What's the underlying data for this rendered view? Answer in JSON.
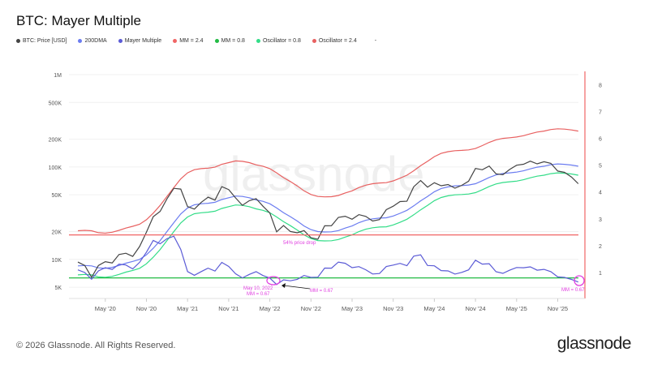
{
  "title": "BTC: Mayer Multiple",
  "footer": "© 2026 Glassnode. All Rights Reserved.",
  "logo": "glassnode",
  "watermark": "glassnode",
  "legend": [
    {
      "label": "BTC: Price [USD]",
      "color": "#444444"
    },
    {
      "label": "200DMA",
      "color": "#6b7cf0"
    },
    {
      "label": "Mayer Multiple",
      "color": "#5b5bd6"
    },
    {
      "label": "MM = 2.4",
      "color": "#f06565"
    },
    {
      "label": "MM = 0.8",
      "color": "#22bb44"
    },
    {
      "label": "Oscillator = 0.8",
      "color": "#33dd88"
    },
    {
      "label": "Oscillator = 2.4",
      "color": "#e86060"
    },
    {
      "label": "-",
      "color": "#ffffff"
    }
  ],
  "chart_data": {
    "type": "line",
    "title": "BTC: Mayer Multiple",
    "x_start": "2020-01",
    "x_step": "month",
    "x_ticks": [
      "May '20",
      "Nov '20",
      "May '21",
      "Nov '21",
      "May '22",
      "Nov '22",
      "May '23",
      "Nov '23",
      "May '24",
      "Nov '24",
      "May '25",
      "Nov '25"
    ],
    "y_left": {
      "scale": "log",
      "range": [
        4000,
        1000000
      ],
      "ticks": [
        "5K",
        "10K",
        "20K",
        "50K",
        "100K",
        "200K",
        "500K",
        "1M"
      ]
    },
    "y_right": {
      "scale": "linear",
      "range": [
        0.5,
        8.3
      ],
      "ticks": [
        "1",
        "2",
        "3",
        "4",
        "5",
        "6",
        "7",
        "8"
      ]
    },
    "grid": true,
    "legend_placement": "top-left",
    "series": [
      {
        "name": "BTC: Price [USD]",
        "axis": "left",
        "color": "#444444",
        "values": [
          9350,
          8600,
          6400,
          8600,
          9450,
          9140,
          11300,
          11650,
          10780,
          13800,
          19700,
          29000,
          33100,
          45200,
          58800,
          57700,
          37300,
          35000,
          41500,
          47100,
          43800,
          61300,
          57000,
          46300,
          38500,
          43200,
          45500,
          37700,
          31800,
          19900,
          23300,
          20050,
          19400,
          20500,
          17170,
          16550,
          23100,
          23150,
          28500,
          29300,
          27200,
          30500,
          29200,
          26000,
          27000,
          34500,
          37700,
          42300,
          42600,
          61200,
          71300,
          60600,
          67500,
          62700,
          64600,
          59000,
          63300,
          70200,
          96400,
          93400,
          102400,
          84400,
          82500,
          94200,
          104600,
          107100,
          115700,
          108200,
          114000,
          109500,
          90400,
          87500,
          78000,
          66000
        ]
      },
      {
        "name": "200DMA",
        "axis": "left",
        "color": "#6b7cf0",
        "values": [
          8500,
          8600,
          8500,
          8100,
          8000,
          8200,
          8600,
          9100,
          9500,
          10000,
          11200,
          13200,
          16000,
          20000,
          25000,
          31000,
          36000,
          39000,
          40000,
          40500,
          41500,
          44500,
          46500,
          48500,
          48000,
          46500,
          44000,
          42500,
          40000,
          36000,
          32000,
          29000,
          26000,
          23000,
          21000,
          20000,
          19800,
          19900,
          20500,
          21800,
          23000,
          25000,
          26500,
          27500,
          28000,
          28200,
          29500,
          31500,
          34000,
          38000,
          43000,
          48000,
          54000,
          58500,
          61000,
          62500,
          63000,
          63800,
          66000,
          71000,
          77000,
          82000,
          85000,
          86500,
          88000,
          91000,
          95500,
          99500,
          102000,
          106000,
          108000,
          107000,
          105000,
          102000
        ]
      },
      {
        "name": "Oscillator = 2.4",
        "axis": "left",
        "color": "#e86060",
        "multiplier": 2.4
      },
      {
        "name": "Oscillator = 0.8",
        "axis": "left",
        "color": "#33dd88",
        "multiplier": 0.8
      },
      {
        "name": "Mayer Multiple",
        "axis": "right",
        "color": "#5b5bd6",
        "derived": "price / 200DMA"
      },
      {
        "name": "MM = 2.4",
        "axis": "right",
        "color": "#f06565",
        "value": 2.4
      },
      {
        "name": "MM = 0.8",
        "axis": "right",
        "color": "#22bb44",
        "value": 0.8
      }
    ],
    "annotations": [
      {
        "text": "54% price drop",
        "color": "#e040e0"
      },
      {
        "text": "May 10, 2022",
        "color": "#e040e0"
      },
      {
        "text": "MM = 0.67",
        "color": "#e040e0"
      },
      {
        "text": "MM = 0.67",
        "color": "#e040e0"
      },
      {
        "text": "MM = 0.67",
        "color": "#e040e0"
      }
    ]
  }
}
